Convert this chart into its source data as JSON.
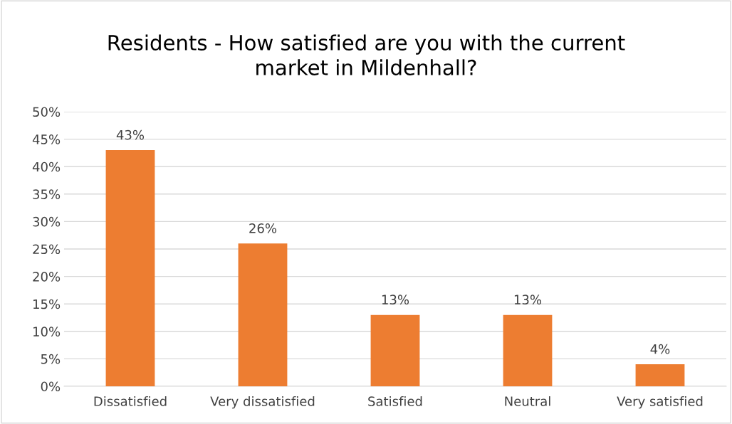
{
  "chart_data": {
    "type": "bar",
    "title": "Residents - How satisfied are you with the current\nmarket in Mildenhall?",
    "categories": [
      "Dissatisfied",
      "Very dissatisfied",
      "Satisfied",
      "Neutral",
      "Very satisfied"
    ],
    "values": [
      43,
      26,
      13,
      13,
      4
    ],
    "color": "#ed7d31",
    "ylim": [
      0,
      50
    ],
    "yticks": [
      {
        "value": 0,
        "label": "0%"
      },
      {
        "value": 5,
        "label": "5%"
      },
      {
        "value": 10,
        "label": "10%"
      },
      {
        "value": 15,
        "label": "15%"
      },
      {
        "value": 20,
        "label": "20%"
      },
      {
        "value": 25,
        "label": "25%"
      },
      {
        "value": 30,
        "label": "30%"
      },
      {
        "value": 35,
        "label": "35%"
      },
      {
        "value": 40,
        "label": "40%"
      },
      {
        "value": 45,
        "label": "45%"
      },
      {
        "value": 50,
        "label": "50%"
      }
    ],
    "value_labels": [
      "43%",
      "26%",
      "13%",
      "13%",
      "4%"
    ],
    "grid": "y",
    "legend": false
  }
}
